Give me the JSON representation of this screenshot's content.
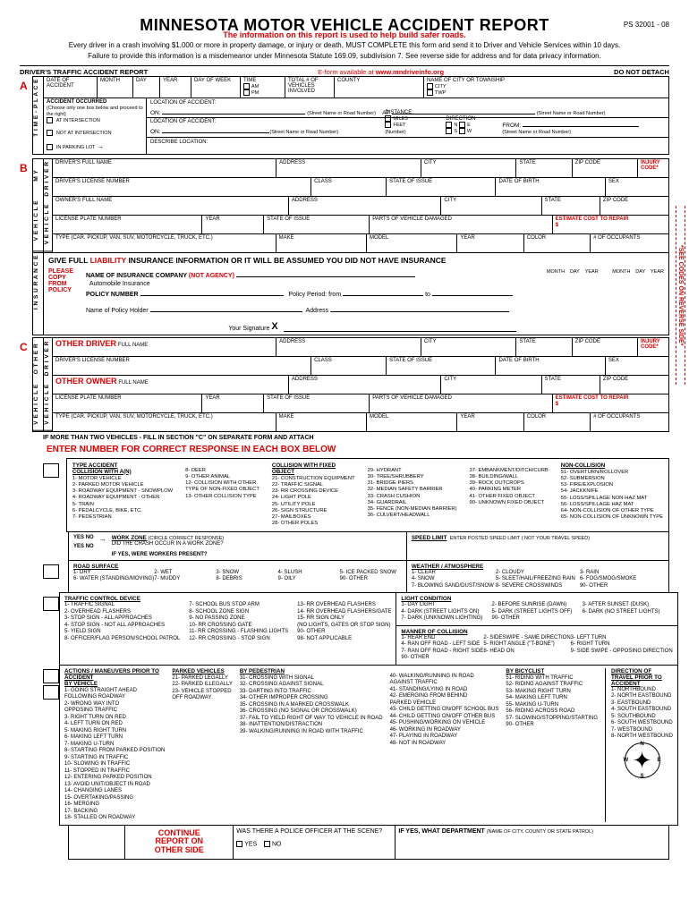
{
  "header": {
    "title": "MINNESOTA MOTOR VEHICLE ACCIDENT REPORT",
    "form_id": "PS 32001 - 08",
    "subtitle": "The information on this report is used to help build safer roads.",
    "intro1": "Every driver in a crash involving $1,000 or more in property damage, or injury or death, MUST COMPLETE this form and send it to Driver and Vehicle Services within 10 days.",
    "intro2": "Failure to provide this information is a misdemeanor under Minnesota Statute 169.09, subdivision 7. See reverse side for address and for data privacy information."
  },
  "section_top": {
    "left": "DRIVER'S TRAFFIC ACCIDENT REPORT",
    "eform": "E-form available at ",
    "eform_link": "www.mndriveinfo.org",
    "right": "DO NOT DETACH"
  },
  "side_text": "*SEE CODES ON REVERSE SIDE*",
  "letters": {
    "a": "A",
    "b": "B",
    "c": "C"
  },
  "vlabels": {
    "time_place": "T I M E - P L A C E",
    "my": "M Y",
    "vehicle": "V E H I C L E",
    "driver": "D R I V E R",
    "vehicle2": "V E H I C L E",
    "insurance": "I N S U R A N C E",
    "other": "O T H E R",
    "other_driver": "D R I V E R",
    "other_vehicle": "V E H I C L E"
  },
  "sectionA": {
    "date_label": "DATE OF ACCIDENT",
    "month": "MONTH",
    "day": "DAY",
    "year": "YEAR",
    "dow": "DAY OF WEEK",
    "time": "TIME",
    "am": "AM",
    "pm": "PM",
    "total_veh": "TOTAL # OF VEHICLES INVOLVED",
    "county": "COUNTY",
    "city_twp": "NAME OF CITY OR TOWNSHIP",
    "city": "CITY",
    "twp": "TWP",
    "acc_occ": "ACCIDENT OCCURRED",
    "acc_occ_sub": "(Choose only one box below and proceed to the right)",
    "at_int": "AT INTERSECTION",
    "not_int": "NOT AT INTERSECTION",
    "parking": "IN PARKING LOT",
    "loc_acc": "LOCATION OF ACCIDENT:",
    "on": "ON:",
    "at": "AT:",
    "street_hint": "(Street Name or Road Number)",
    "distance": "DISTANCE:",
    "miles": "MILES",
    "feet": "FEET",
    "direction": "DIRECTION",
    "n": "N",
    "s": "S",
    "e": "E",
    "w": "W",
    "from": "FROM:",
    "number": "(Number)",
    "describe": "DESCRIBE LOCATION:"
  },
  "driver_fields": {
    "full_name": "DRIVER'S FULL NAME",
    "address": "ADDRESS",
    "city": "CITY",
    "state": "STATE",
    "zip": "ZIP CODE",
    "injury": "INJURY CODE*",
    "license": "DRIVER'S LICENSE NUMBER",
    "class": "CLASS",
    "soi": "STATE OF ISSUE",
    "dob": "DATE OF BIRTH",
    "sex": "SEX",
    "owner": "OWNER'S FULL NAME",
    "plate": "LICENSE PLATE NUMBER",
    "year": "YEAR",
    "parts": "PARTS OF VEHICLE DAMAGED",
    "estimate": "ESTIMATE COST TO REPAIR",
    "dollar": "$",
    "type": "TYPE (CAR, PICKUP, VAN, SUV, MOTORCYCLE, TRUCK, ETC.)",
    "make": "MAKE",
    "model": "MODEL",
    "color": "COLOR",
    "occupants": "# OF OCCUPANTS"
  },
  "insurance": {
    "header": "GIVE FULL LIABILITY INSURANCE INFORMATION OR IT WILL BE ASSUMED YOU DID NOT HAVE INSURANCE",
    "liability": "LIABILITY",
    "please": "PLEASE",
    "copy": "COPY",
    "from": "FROM",
    "policy": "POLICY",
    "name_co": "NAME OF INSURANCE COMPANY ",
    "not_agency": "(NOT AGENCY)",
    "auto_ins": "Automobile Insurance",
    "policy_num": "POLICY NUMBER",
    "policy_period": "Policy Period: from",
    "to": "to",
    "month": "MONTH",
    "day": "DAY",
    "year": "YEAR",
    "holder": "Name of Policy Holder",
    "addr": "Address",
    "sig": "Your Signature",
    "x": "X"
  },
  "other": {
    "driver": "OTHER DRIVER",
    "owner": "OTHER OWNER",
    "full_name": "FULL NAME"
  },
  "more_veh": "IF MORE THAN TWO VEHICLES - FILL IN SECTION \"C\" ON SEPARATE FORM AND ATTACH",
  "codes_header": "ENTER NUMBER FOR CORRECT RESPONSE IN EACH BOX BELOW",
  "type_accident": {
    "title": "TYPE ACCIDENT",
    "col1_title": "COLLISION WITH A(N)",
    "col1": [
      "1- MOTOR VEHICLE",
      "2- PARKED MOTOR VEHICLE",
      "3- ROADWAY EQUIPMENT - SNOWPLOW",
      "4- ROADWAY EQUIPMENT - OTHER",
      "5- TRAIN",
      "6- PEDALCYCLE, BIKE, ETC.",
      "7- PEDESTRIAN"
    ],
    "col1b": [
      "8- DEER",
      "9- OTHER ANIMAL",
      "",
      "12- COLLISION WITH OTHER",
      "    TYPE OF NON-FIXED OBJECT",
      "13- OTHER COLLISION TYPE"
    ],
    "col2_title": "COLLISION WITH FIXED OBJECT",
    "col2": [
      "21- CONSTRUCTION EQUIPMENT",
      "22- TRAFFIC SIGNAL",
      "23- RR CROSSING DEVICE",
      "24- LIGHT POLE",
      "25- UTILITY POLE",
      "26- SIGN STRUCTURE",
      "27- MAILBOXES",
      "28- OTHER POLES"
    ],
    "col2b": [
      "29- HYDRANT",
      "30- TREE/SHRUBBERY",
      "31- BRIDGE PIERS",
      "32- MEDIAN SAFETY BARRIER",
      "33- CRASH CUSHION",
      "34- GUARDRAIL",
      "35- FENCE (NON-MEDIAN BARRIER)",
      "36- CULVERT/HEADWALL"
    ],
    "col2c": [
      "37- EMBANKMENT/DITCH/CURB",
      "38- BUILDING/WALL",
      "39- ROCK OUTCROPS",
      "40- PARKING METER",
      "41- OTHER FIXED OBJECT",
      "90- UNKNOWN FIXED OBJECT"
    ],
    "col3_title": "NON-COLLISION",
    "col3": [
      "51- OVERTURN/ROLLOVER",
      "52- SUBMERSION",
      "53- FIRE/EXPLOSION",
      "54- JACKKNIFE",
      "55- LOSS/SPILLAGE NON-HAZ MAT",
      "56- LOSS/SPILLAGE HAZ MAT",
      "64- NON-COLLISION OF OTHER TYPE",
      "65- NON-COLLISION OF UNKNOWN TYPE"
    ]
  },
  "work_zone": {
    "title": "WORK ZONE",
    "sub": "(CIRCLE CORRECT RESPONSE)",
    "q1": "DID THE CRASH OCCUR IN A WORK ZONE?",
    "q2": "IF YES, WERE WORKERS PRESENT?",
    "yes": "YES",
    "no": "NO"
  },
  "speed": {
    "title": "SPEED LIMIT",
    "sub": "ENTER POSTED SPEED LIMIT ( NOT YOUR TRAVEL SPEED)"
  },
  "road_surface": {
    "title": "ROAD SURFACE",
    "items": [
      "1- DRY",
      "2- WET",
      "3- SNOW",
      "4- SLUSH",
      "5- ICE PACKED SNOW",
      "6- WATER (STANDING/MOVING)",
      "7- MUDDY",
      "8- DEBRIS",
      "9- OILY",
      "90- OTHER"
    ]
  },
  "weather": {
    "title": "WEATHER / ATMOSPHERE",
    "items": [
      "1- CLEAR",
      "2- CLOUDY",
      "3- RAIN",
      "4- SNOW",
      "5- SLEET/HAIL/FREEZING RAIN",
      "6- FOG/SMOG/SMOKE",
      "7- BLOWING SAND/DUST/SNOW",
      "8- SEVERE CROSSWINDS",
      "90- OTHER"
    ]
  },
  "light": {
    "title": "LIGHT CONDITION",
    "items": [
      "1- DAY LIGHT",
      "2- BEFORE SUNRISE (DAWN)",
      "3- AFTER SUNSET (DUSK)",
      "4- DARK (STREET LIGHTS ON)",
      "5- DARK (STREET LIGHTS OFF)",
      "6- DARK (NO STREET LIGHTS)",
      "7- DARK (UNKNOWN LIGHTING)",
      "90- OTHER"
    ]
  },
  "tcd": {
    "title": "TRAFFIC CONTROL DEVICE",
    "items": [
      "1- TRAFFIC SIGNAL",
      "2- OVERHEAD FLASHERS",
      "3- STOP SIGN - ALL APPROACHES",
      "4- STOP SIGN - NOT ALL APPROACHES",
      "5- YIELD SIGN",
      "8- OFFICER/FLAG PERSON/SCHOOL PATROL"
    ],
    "items2": [
      "7- SCHOOL BUS STOP ARM",
      "8- SCHOOL ZONE SIGN",
      "9- NO PASSING ZONE",
      "10- RR CROSSING GATE",
      "11- RR CROSSING - FLASHING LIGHTS",
      "12- RR CROSSING - STOP SIGN"
    ],
    "items3": [
      "13- RR OVERHEAD FLASHERS",
      "14- RR OVERHEAD FLASHERS/GATE",
      "15- RR SIGN ONLY",
      "    (NO LIGHTS, GATES OR STOP SIGN)",
      "90- OTHER",
      "98- NOT APPLICABLE"
    ]
  },
  "manner": {
    "title": "MANNER OF COLLISION",
    "items": [
      "1- REAR END",
      "2- SIDESWIPE - SAME DIRECTION",
      "3- LEFT TURN",
      "4- RAN OFF ROAD - LEFT SIDE",
      "5- RIGHT ANGLE (\"T-BONE\")",
      "6- RIGHT TURN",
      "7- RAN OFF ROAD - RIGHT SIDE",
      "8- HEAD ON",
      "9- SIDE SWIPE - OPPOSING DIRECTION",
      "90- OTHER"
    ]
  },
  "actions": {
    "title": "ACTIONS / MANEUVERS PRIOR TO ACCIDENT",
    "by_vehicle_title": "BY VEHICLE",
    "by_vehicle": [
      "1- GOING STRAIGHT AHEAD",
      "   FOLLOWING ROADWAY",
      "2- WRONG WAY INTO",
      "   OPPOSING TRAFFIC",
      "3- RIGHT TURN ON RED",
      "4- LEFT TURN ON RED",
      "5- MAKING RIGHT TURN",
      "6- MAKING LEFT TURN",
      "7- MAKING U-TURN",
      "8- STARTING FROM PARKED POSITION",
      "9- STARTING IN TRAFFIC",
      "10- SLOWING IN TRAFFIC",
      "11- STOPPED IN TRAFFIC",
      "12- ENTERING PARKED POSITION",
      "13- AVOID UNIT/OBJECT IN ROAD",
      "14- CHANGING LANES",
      "15- OVERTAKING/PASSING",
      "16- MERGING",
      "17- BACKING",
      "18- STALLED ON ROADWAY"
    ],
    "parked_title": "PARKED VEHICLES",
    "parked": [
      "21- PARKED LEGALLY",
      "22- PARKED ILLEGALLY",
      "23- VEHICLE STOPPED",
      "    OFF ROADWAY"
    ],
    "ped_title": "BY PEDESTRIAN",
    "ped": [
      "31- CROSSING WITH SIGNAL",
      "32- CROSSING AGAINST SIGNAL",
      "33- DARTING INTO TRAFFIC",
      "34- OTHER IMPROPER CROSSING",
      "35- CROSSING IN A MARKED CROSSWALK",
      "36- CROSSING (NO SIGNAL OR CROSSWALK)",
      "37- FAIL TO YIELD RIGHT OF WAY TO VEHICLE IN ROAD",
      "38- INATTENTION/DISTRACTION",
      "39- WALKING/RUNNING IN ROAD WITH TRAFFIC"
    ],
    "ped2": [
      "40- WALKING/RUNNING IN ROAD",
      "    AGAINST TRAFFIC",
      "41- STANDING/LYING IN ROAD",
      "42- EMERGING FROM BEHIND",
      "    PARKED VEHICLE",
      "43- CHILD GETTING ON/OFF SCHOOL BUS",
      "44- CHILD GETTING ON/OFF OTHER BUS",
      "45- PUSHING/WORKING ON VEHICLE",
      "46- WORKING IN ROADWAY",
      "47- PLAYING IN ROADWAY",
      "48- NOT IN ROADWAY"
    ],
    "bike_title": "BY BICYCLIST",
    "bike": [
      "51- RIDING WITH TRAFFIC",
      "52- RIDING AGAINST TRAFFIC",
      "53- MAKING RIGHT TURN",
      "54- MAKING LEFT TURN",
      "55- MAKING U-TURN",
      "56- RIDING ACROSS ROAD",
      "57- SLOWING/STOPPING/STARTING",
      "",
      "90- OTHER"
    ]
  },
  "direction": {
    "title": "DIRECTION OF TRAVEL PRIOR TO ACCIDENT",
    "items": [
      "1- NORTHBOUND",
      "2- NORTH EASTBOUND",
      "3- EASTBOUND",
      "4- SOUTH EASTBOUND",
      "5- SOUTHBOUND",
      "6- SOUTH WESTBOUND",
      "7- WESTBOUND",
      "8- NORTH WESTBOUND"
    ]
  },
  "continue": {
    "l1": "CONTINUE",
    "l2": "REPORT ON",
    "l3": "OTHER SIDE"
  },
  "police": {
    "q": "WAS THERE A POLICE OFFICER AT THE SCENE?",
    "yes": "YES",
    "no": "NO",
    "ifyes": "IF YES, WHAT DEPARTMENT",
    "hint": "(NAME OF CITY, COUNTY OR STATE PATROL)"
  }
}
